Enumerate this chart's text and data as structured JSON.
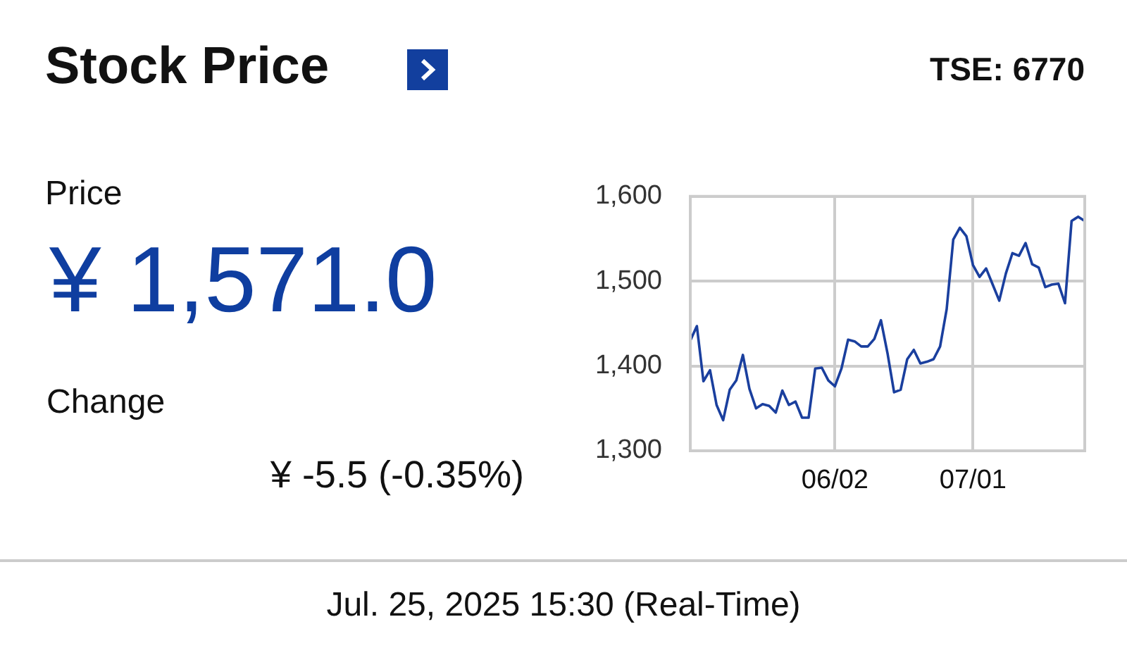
{
  "chart_data": {
    "type": "line",
    "title": "Stock Price",
    "annotations": [
      "TSE: 6770",
      "Price",
      "¥ 1,571.0",
      "Change",
      "¥ -5.5 (-0.35%)",
      "Jul. 25, 2025 15:30 (Real-Time)"
    ],
    "categories": [
      null,
      null,
      null,
      null,
      null,
      null,
      null,
      null,
      null,
      null,
      null,
      null,
      null,
      null,
      null,
      null,
      null,
      null,
      null,
      null,
      null,
      null,
      "06/02",
      null,
      null,
      null,
      null,
      null,
      null,
      null,
      null,
      null,
      null,
      null,
      null,
      null,
      null,
      null,
      null,
      null,
      null,
      null,
      null,
      "07/01",
      null,
      null,
      null,
      null,
      null,
      null,
      null,
      null,
      null,
      null,
      null,
      null,
      null,
      null,
      null,
      null,
      null
    ],
    "series": [
      {
        "color": "#1a3f9e",
        "values": [
          1430,
          1447,
          1382,
          1395,
          1354,
          1336,
          1372,
          1383,
          1413,
          1373,
          1350,
          1355,
          1353,
          1345,
          1371,
          1354,
          1358,
          1339,
          1339,
          1397,
          1398,
          1383,
          1376,
          1397,
          1431,
          1429,
          1423,
          1423,
          1432,
          1454,
          1415,
          1369,
          1372,
          1408,
          1419,
          1403,
          1405,
          1408,
          1423,
          1467,
          1549,
          1563,
          1553,
          1519,
          1505,
          1515,
          1496,
          1477,
          1509,
          1533,
          1530,
          1545,
          1520,
          1516,
          1493,
          1496,
          1497,
          1474,
          1571,
          1576,
          1571
        ]
      }
    ],
    "ylim": [
      1300,
      1600
    ],
    "yticks": [
      {
        "value": 1300,
        "label": "1,300"
      },
      {
        "value": 1400,
        "label": "1,400"
      },
      {
        "value": 1500,
        "label": "1,500"
      },
      {
        "value": 1600,
        "label": "1,600"
      }
    ],
    "grid": true,
    "legend": false,
    "marker": "none",
    "line_style": "solid"
  }
}
